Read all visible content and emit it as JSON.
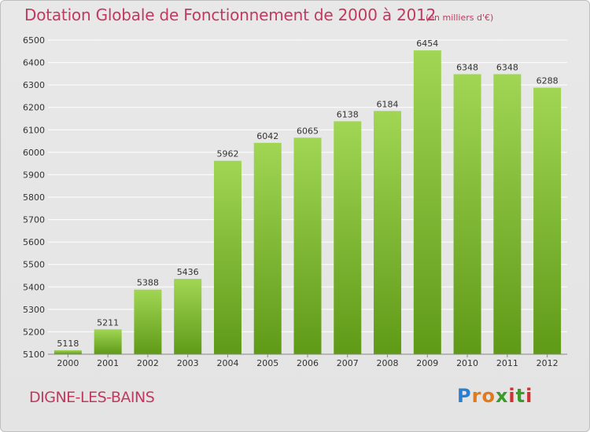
{
  "header": {
    "title": "Dotation Globale de Fonctionnement de 2000 à 2012",
    "unit_note": "(en milliers d'€)"
  },
  "footer": {
    "city": "DIGNE-LES-BAINS",
    "brand_letters": [
      "P",
      "r",
      "o",
      "x",
      "i",
      "t",
      "i"
    ],
    "brand_colors": [
      "#2a7fd0",
      "#e07a1a",
      "#e07a1a",
      "#3a9a2a",
      "#d03030",
      "#3a9a2a",
      "#d03030"
    ]
  },
  "colors": {
    "title": "#c03a60",
    "bar_light": "#a0d654",
    "bar_dark": "#5f9a17",
    "grid": "#ffffff"
  },
  "chart_data": {
    "type": "bar",
    "title": "Dotation Globale de Fonctionnement de 2000 à 2012",
    "subtitle": "(en milliers d'€)",
    "xlabel": "",
    "ylabel": "",
    "categories": [
      "2000",
      "2001",
      "2002",
      "2003",
      "2004",
      "2005",
      "2006",
      "2007",
      "2008",
      "2009",
      "2010",
      "2011",
      "2012"
    ],
    "values": [
      5118,
      5211,
      5388,
      5436,
      5962,
      6042,
      6065,
      6138,
      6184,
      6454,
      6348,
      6348,
      6288
    ],
    "ylim": [
      5100,
      6500
    ],
    "yticks": [
      5100,
      5200,
      5300,
      5400,
      5500,
      5600,
      5700,
      5800,
      5900,
      6000,
      6100,
      6200,
      6300,
      6400,
      6500
    ],
    "grid": true,
    "legend": "none"
  }
}
